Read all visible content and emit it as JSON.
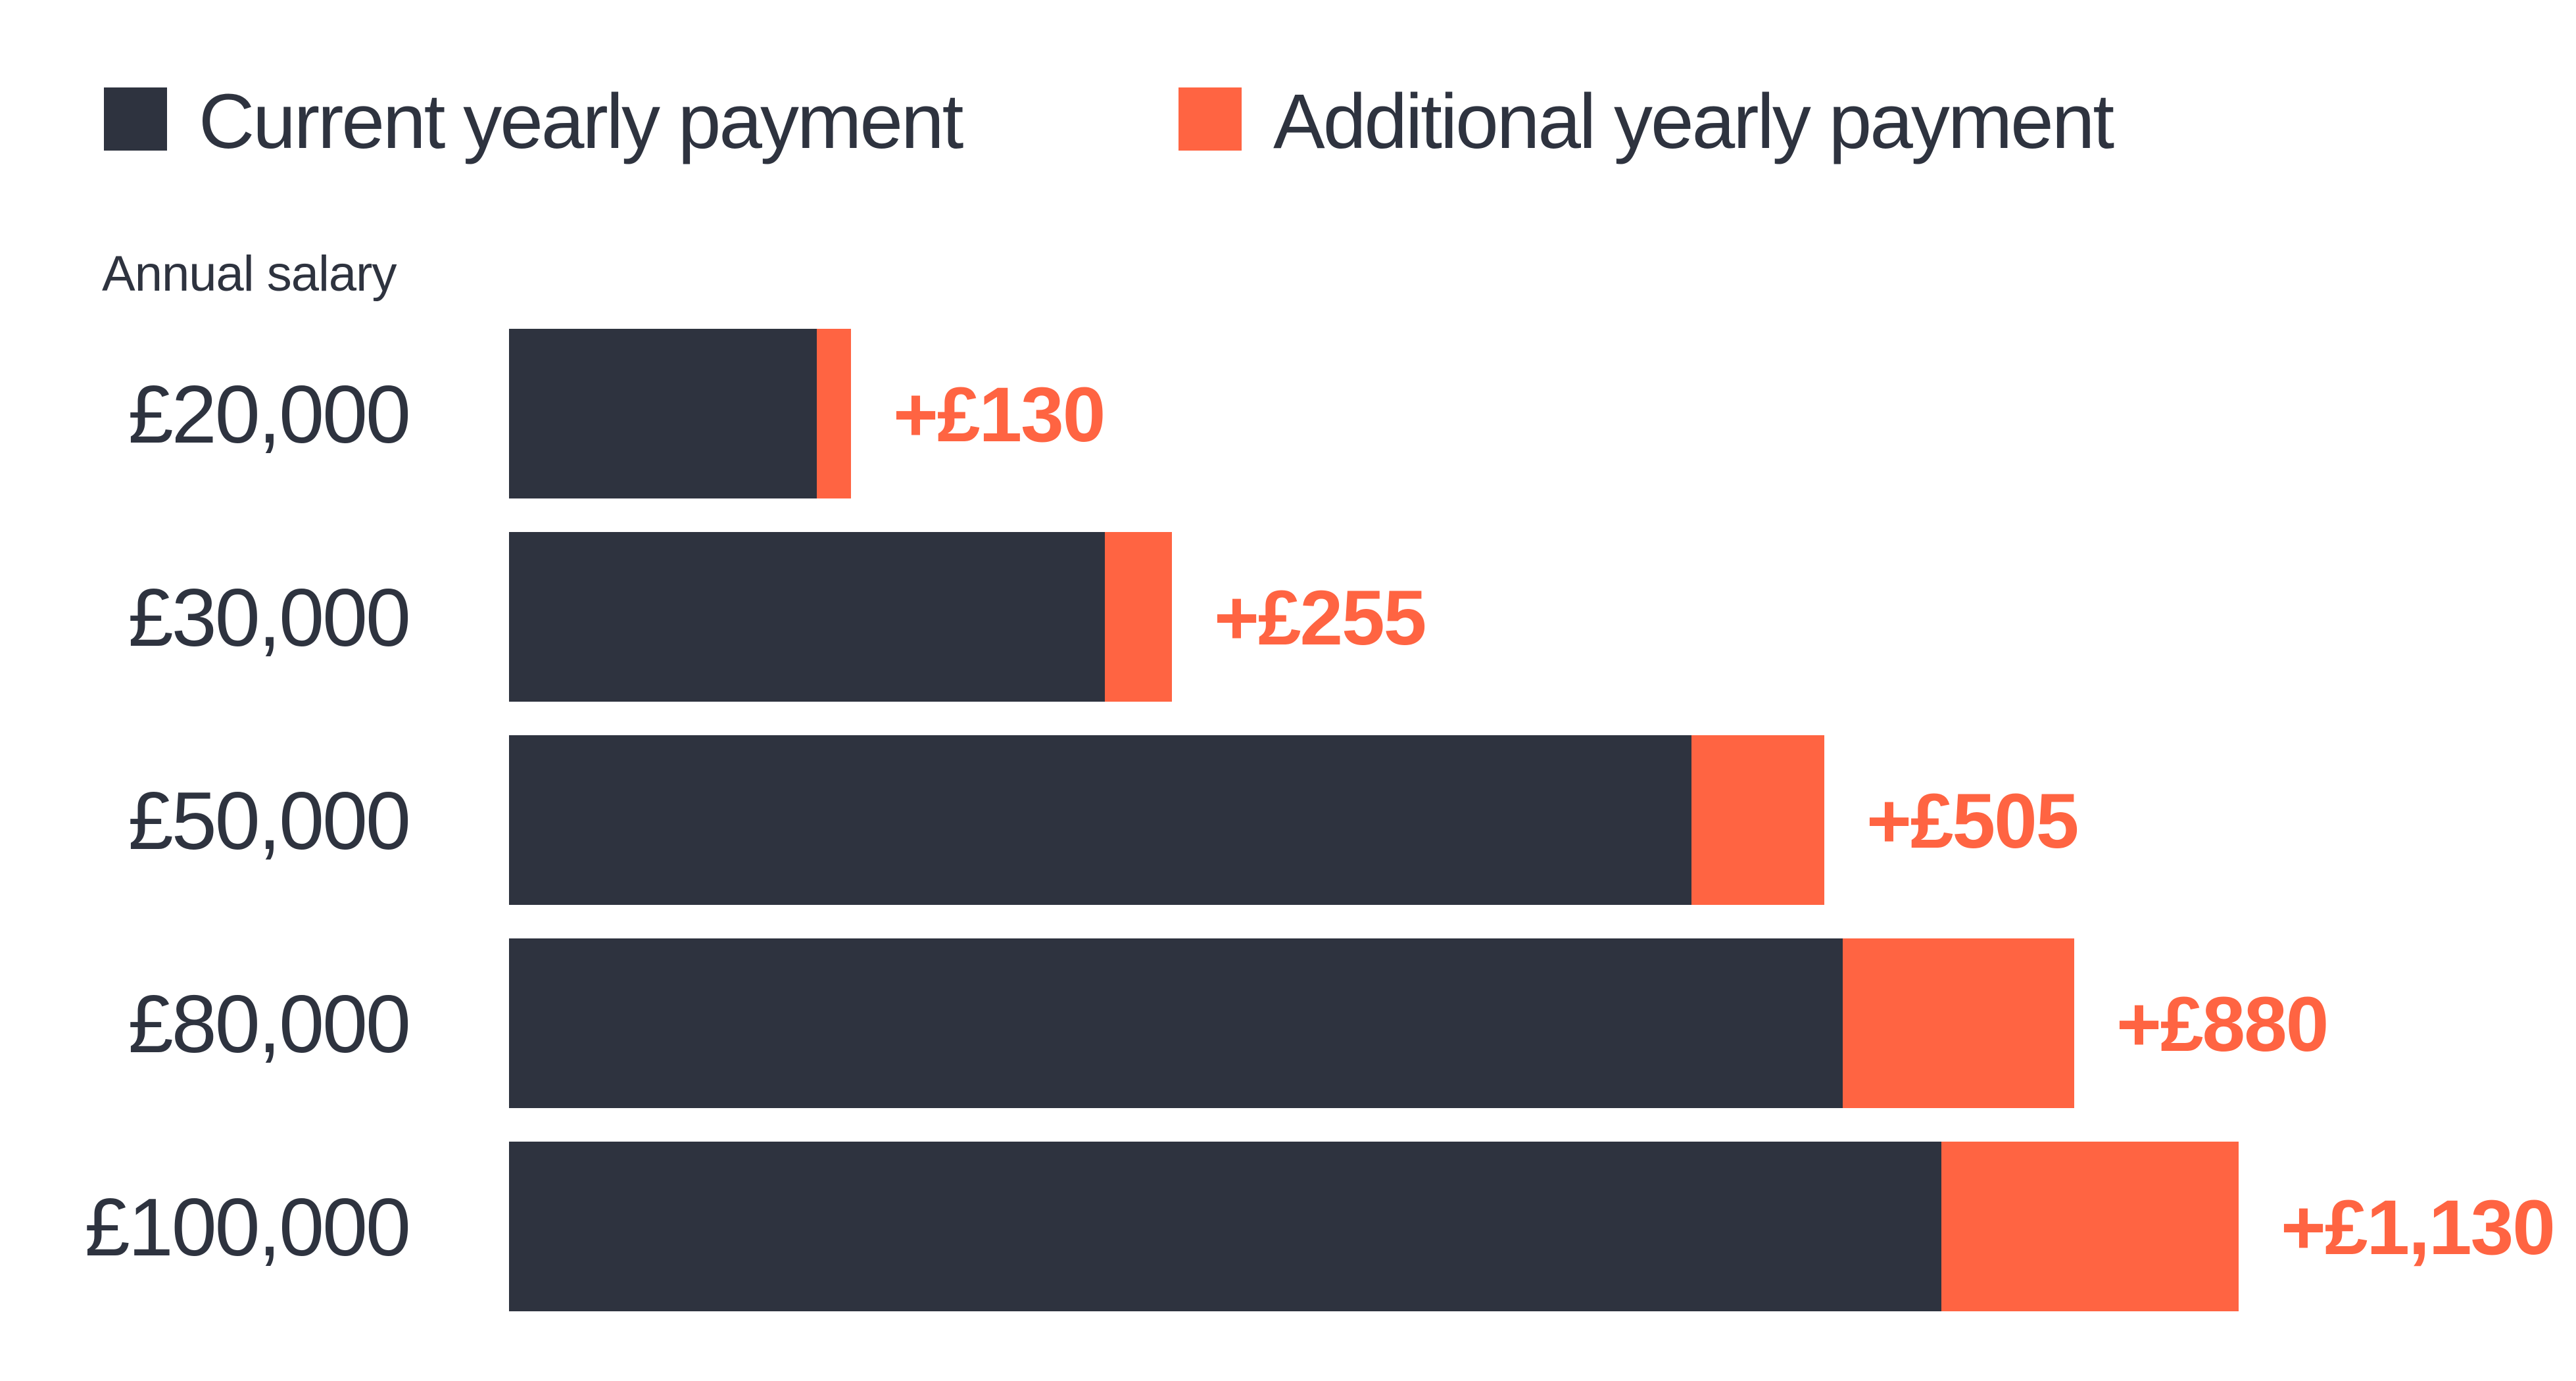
{
  "chart_data": {
    "type": "bar",
    "orientation": "horizontal",
    "stacked": true,
    "ylabel": "Annual salary",
    "categories": [
      "£20,000",
      "£30,000",
      "£50,000",
      "£80,000",
      "£100,000"
    ],
    "series": [
      {
        "name": "Current yearly payment",
        "color": "#2e333f",
        "values": [
          1170,
          2265,
          4495,
          5070,
          5445
        ]
      },
      {
        "name": "Additional yearly payment",
        "color": "#ff6442",
        "values": [
          130,
          255,
          505,
          880,
          1130
        ]
      }
    ],
    "data_labels": [
      "+£130",
      "+£255",
      "+£505",
      "+£880",
      "+£1,130"
    ],
    "xlim": [
      0,
      6500
    ],
    "grid": false,
    "legend_position": "top-left"
  }
}
